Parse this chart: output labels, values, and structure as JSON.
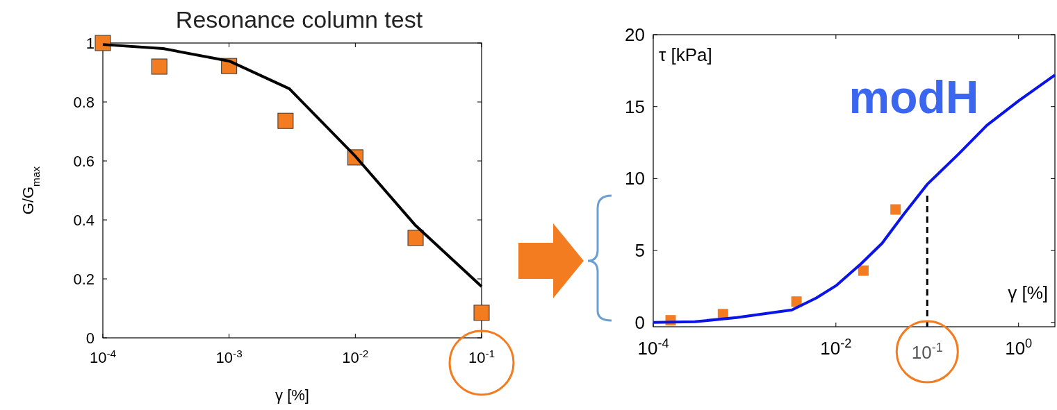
{
  "chart_data": [
    {
      "type": "scatter",
      "title": "Resonance column test",
      "xlabel": "γ [%]",
      "ylabel": "G/G$_{max}$",
      "log": "x",
      "xlim": [
        0.0001,
        0.1
      ],
      "ylim": [
        0,
        1
      ],
      "xticks": [
        {
          "value": 0.0001,
          "label": "10$^{-4}$"
        },
        {
          "value": 0.001,
          "label": "10$^{-3}$"
        },
        {
          "value": 0.01,
          "label": "10$^{-2}$"
        },
        {
          "value": 0.1,
          "label": "10$^{-1}$"
        }
      ],
      "yticks": [
        0,
        0.2,
        0.4,
        0.6,
        0.8,
        1
      ],
      "grid": false,
      "series": [
        {
          "type": "line",
          "color": "#000000",
          "x": [
            0.0001,
            0.0003,
            0.001,
            0.003,
            0.01,
            0.03,
            0.1
          ],
          "values": [
            0.995,
            0.981,
            0.939,
            0.845,
            0.616,
            0.381,
            0.174
          ],
          "line_style": "solid",
          "marker": "none"
        },
        {
          "color": "#f47c20",
          "marker": "square",
          "x": [
            0.0001,
            0.00028,
            0.001,
            0.0028,
            0.01,
            0.03,
            0.1
          ],
          "values": [
            1.0,
            0.92,
            0.922,
            0.736,
            0.612,
            0.339,
            0.085
          ]
        }
      ]
    },
    {
      "type": "scatter",
      "xlabel": "γ [%]",
      "ylabel": "τ [kPa]",
      "log": "x",
      "xlim": [
        0.0001,
        2.5
      ],
      "ylim": [
        -0.3,
        20
      ],
      "xticks": [
        {
          "value": 0.0001,
          "label": "10$^{-4}$"
        },
        {
          "value": 0.01,
          "label": "10$^{-2}$"
        },
        {
          "value": 1,
          "label": "10$^{0}$"
        }
      ],
      "yticks": [
        0,
        5,
        10,
        15,
        20
      ],
      "grid": false,
      "annotations": [
        "modH"
      ],
      "ref_lines": [
        {
          "axis": "x",
          "value": 0.1,
          "label": "10$^{-1}$",
          "line_style": "dashed",
          "color": "#000000"
        }
      ],
      "series": [
        {
          "type": "line",
          "color": "#0a14e6",
          "x": [
            0.0001,
            0.000285,
            0.00082,
            0.0033,
            0.0061,
            0.01,
            0.019,
            0.032,
            0.055,
            0.1,
            0.22,
            0.45,
            1,
            2.5
          ],
          "values": [
            0,
            0.05,
            0.34,
            0.87,
            1.7,
            2.55,
            4.1,
            5.5,
            7.5,
            9.6,
            11.7,
            13.7,
            15.4,
            17.2
          ],
          "line_style": "solid",
          "marker": "none"
        },
        {
          "color": "#f47c20",
          "marker": "square",
          "x": [
            0.000155,
            0.00058,
            0.0037,
            0.02,
            0.045
          ],
          "values": [
            0.15,
            0.58,
            1.45,
            3.6,
            7.85
          ]
        }
      ]
    }
  ]
}
